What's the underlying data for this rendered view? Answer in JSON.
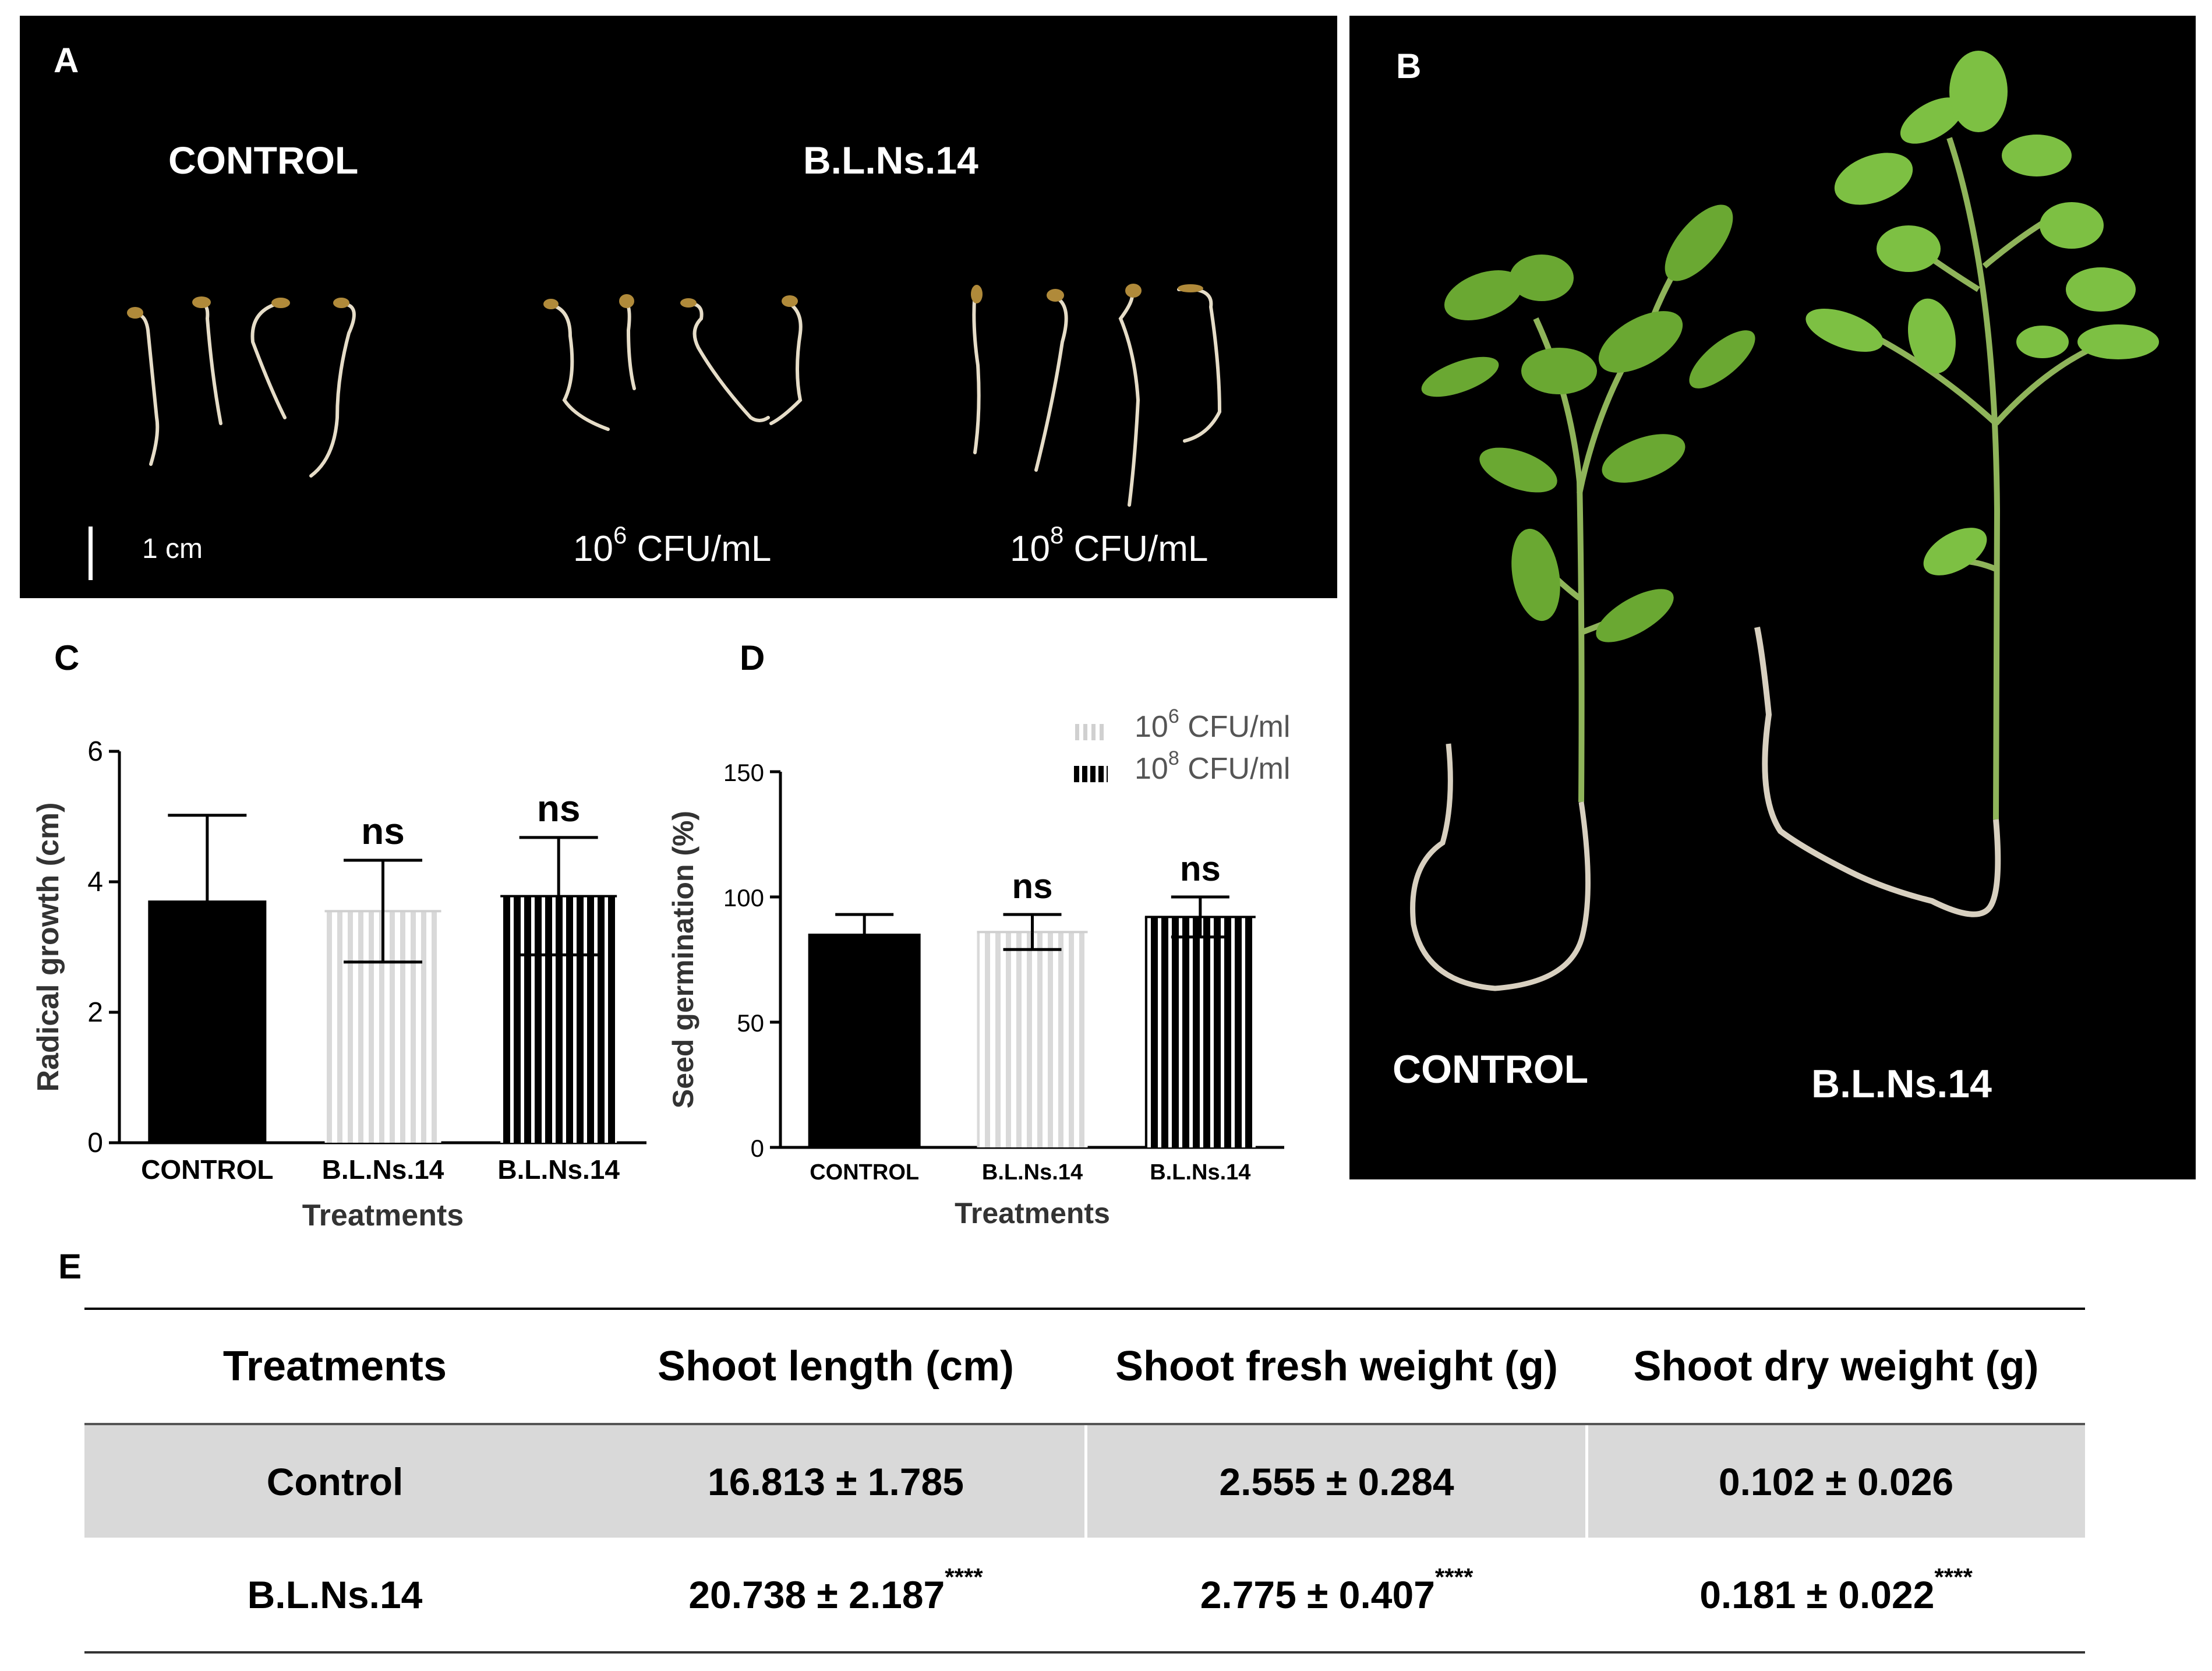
{
  "panel_a": {
    "label": "A",
    "control_title": "CONTROL",
    "treatment_title": "B.L.Ns.14",
    "scale_label": "1 cm",
    "dose_low": {
      "base": "10",
      "exp": "6",
      "unit": " CFU/mL"
    },
    "dose_high": {
      "base": "10",
      "exp": "8",
      "unit": " CFU/mL"
    }
  },
  "panel_b": {
    "label": "B",
    "control_label": "CONTROL",
    "treatment_label": "B.L.Ns.14"
  },
  "panel_c": {
    "label": "C"
  },
  "panel_d": {
    "label": "D"
  },
  "legend": {
    "low": {
      "base": "10",
      "exp": "6",
      "unit": " CFU/ml"
    },
    "high": {
      "base": "10",
      "exp": "8",
      "unit": " CFU/ml"
    }
  },
  "chart_data": [
    {
      "type": "bar",
      "ylabel": "Radical growth (cm)",
      "xlabel": "Treatments",
      "categories": [
        "CONTROL",
        "B.L.Ns.14",
        "B.L.Ns.14"
      ],
      "values": [
        3.7,
        3.55,
        3.78
      ],
      "errors": [
        1.32,
        0.78,
        0.9
      ],
      "significance": [
        "",
        "ns",
        "ns"
      ],
      "ylim": [
        0,
        6
      ],
      "yticks": [
        "0",
        "2",
        "4",
        "6"
      ],
      "fills": [
        "solid-black",
        "light-stripe",
        "dark-stripe"
      ]
    },
    {
      "type": "bar",
      "ylabel": "Seed germination (%)",
      "xlabel": "Treatments",
      "categories": [
        "CONTROL",
        "B.L.Ns.14",
        "B.L.Ns.14"
      ],
      "values": [
        85,
        86,
        92
      ],
      "errors": [
        8,
        7,
        8
      ],
      "significance": [
        "",
        "ns",
        "ns"
      ],
      "ylim": [
        0,
        150
      ],
      "yticks": [
        "0",
        "50",
        "100",
        "150"
      ],
      "fills": [
        "solid-black",
        "light-stripe",
        "dark-stripe"
      ]
    }
  ],
  "table_e": {
    "label": "E",
    "headers": [
      "Treatments",
      "Shoot length (cm)",
      "Shoot fresh weight (g)",
      "Shoot dry weight (g)"
    ],
    "rows": [
      {
        "name": "Control",
        "cells": [
          {
            "value": "16.813 ± 1.785",
            "sig": ""
          },
          {
            "value": "2.555 ± 0.284",
            "sig": ""
          },
          {
            "value": "0.102 ±  0.026",
            "sig": ""
          }
        ]
      },
      {
        "name": "B.L.Ns.14",
        "cells": [
          {
            "value": "20.738 ±  2.187",
            "sig": "****"
          },
          {
            "value": "2.775 ±  0.407",
            "sig": "****"
          },
          {
            "value": "0.181 ±  0.022",
            "sig": "****"
          }
        ]
      }
    ]
  },
  "colors": {
    "bar_dark": "#000000",
    "bar_light_stripe": "#d9d9d9",
    "table_shade": "#d9d9d9",
    "leaf_green": "#7ab83a"
  }
}
